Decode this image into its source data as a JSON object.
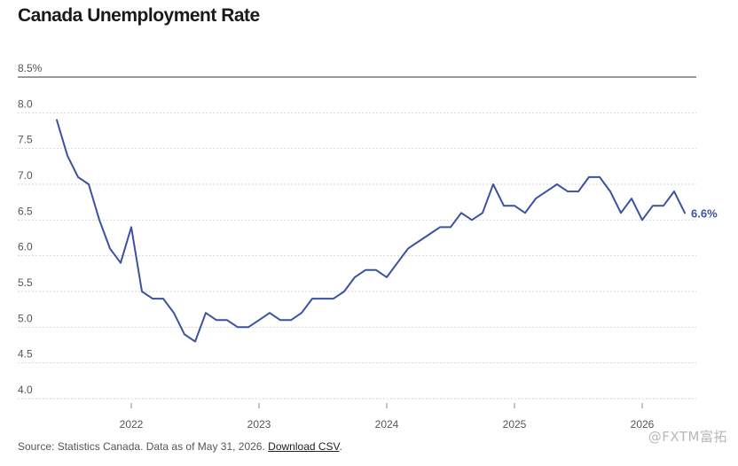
{
  "colors": {
    "line": "#3c52a0",
    "grid": "#d6d6d6",
    "axis": "#333333"
  },
  "footer": {
    "source_text": "Source: Statistics Canada. Data as of May 31, 2026.",
    "link_label": "Download CSV",
    "trailing": "."
  },
  "watermark": "@FXTM富拓",
  "chart_data": {
    "type": "line",
    "title": "Canada Unemployment Rate",
    "xlabel": "",
    "ylabel": "",
    "ylim": [
      4.0,
      8.5
    ],
    "y_ticks": [
      4.0,
      4.5,
      5.0,
      5.5,
      6.0,
      6.5,
      7.0,
      7.5,
      8.0,
      8.5
    ],
    "y_tick_labels": [
      "4.0",
      "4.5",
      "5.0",
      "5.5",
      "6.0",
      "6.5",
      "7.0",
      "7.5",
      "8.0",
      "8.5%"
    ],
    "x_ticks": [
      "2022",
      "2023",
      "2024",
      "2025",
      "2026"
    ],
    "grid": true,
    "end_label": "6.6%",
    "x": [
      "2021-06",
      "2021-07",
      "2021-08",
      "2021-09",
      "2021-10",
      "2021-11",
      "2021-12",
      "2022-01",
      "2022-02",
      "2022-03",
      "2022-04",
      "2022-05",
      "2022-06",
      "2022-07",
      "2022-08",
      "2022-09",
      "2022-10",
      "2022-11",
      "2022-12",
      "2023-01",
      "2023-02",
      "2023-03",
      "2023-04",
      "2023-05",
      "2023-06",
      "2023-07",
      "2023-08",
      "2023-09",
      "2023-10",
      "2023-11",
      "2023-12",
      "2024-01",
      "2024-02",
      "2024-03",
      "2024-04",
      "2024-05",
      "2024-06",
      "2024-07",
      "2024-08",
      "2024-09",
      "2024-10",
      "2024-11",
      "2024-12",
      "2025-01",
      "2025-02",
      "2025-03",
      "2025-04",
      "2025-05",
      "2025-06",
      "2025-07",
      "2025-08",
      "2025-09",
      "2025-10",
      "2025-11",
      "2025-12",
      "2026-01",
      "2026-02",
      "2026-03",
      "2026-04",
      "2026-05"
    ],
    "series": [
      {
        "values": [
          7.9,
          7.4,
          7.1,
          7.0,
          6.5,
          6.1,
          5.9,
          6.4,
          5.5,
          5.4,
          5.4,
          5.2,
          4.9,
          4.8,
          5.2,
          5.1,
          5.1,
          5.0,
          5.0,
          5.1,
          5.2,
          5.1,
          5.1,
          5.2,
          5.4,
          5.4,
          5.4,
          5.5,
          5.7,
          5.8,
          5.8,
          5.7,
          5.9,
          6.1,
          6.2,
          6.3,
          6.4,
          6.4,
          6.6,
          6.5,
          6.6,
          7.0,
          6.7,
          6.7,
          6.6,
          6.8,
          6.9,
          7.0,
          6.9,
          6.9,
          7.1,
          7.1,
          6.9,
          6.6,
          6.8,
          6.5,
          6.7,
          6.7,
          6.9,
          6.6
        ]
      }
    ]
  }
}
